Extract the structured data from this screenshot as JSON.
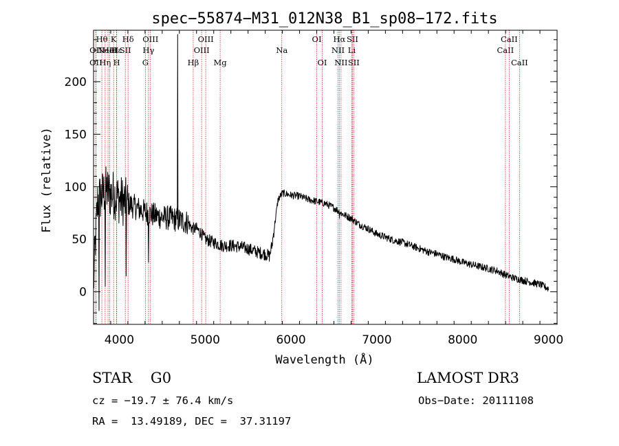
{
  "chart_data": {
    "type": "line",
    "title": "spec−55874−M31_012N38_B1_sp08−172.fits",
    "xlabel": "Wavelength (Å)",
    "ylabel": "Flux (relative)",
    "xlim": [
      3700,
      9100
    ],
    "ylim": [
      -31,
      249
    ],
    "xticks": [
      {
        "value": 4000,
        "label": "4000"
      },
      {
        "value": 5000,
        "label": "5000"
      },
      {
        "value": 6000,
        "label": "6000"
      },
      {
        "value": 7000,
        "label": "7000"
      },
      {
        "value": 8000,
        "label": "8000"
      },
      {
        "value": 9000,
        "label": "9000"
      }
    ],
    "yticks": [
      {
        "value": 0,
        "label": "0"
      },
      {
        "value": 50,
        "label": "50"
      },
      {
        "value": 100,
        "label": "100"
      },
      {
        "value": 150,
        "label": "150"
      },
      {
        "value": 200,
        "label": "200"
      }
    ],
    "x_minor_step": 200,
    "y_minor_step": 10,
    "grid": false,
    "spectrum_anchors": [
      [
        3700,
        5
      ],
      [
        3720,
        45
      ],
      [
        3750,
        88
      ],
      [
        3800,
        92
      ],
      [
        3850,
        97
      ],
      [
        3900,
        93
      ],
      [
        3950,
        92
      ],
      [
        4000,
        88
      ],
      [
        4050,
        86
      ],
      [
        4100,
        84
      ],
      [
        4150,
        82
      ],
      [
        4200,
        80
      ],
      [
        4300,
        76
      ],
      [
        4400,
        73
      ],
      [
        4500,
        71
      ],
      [
        4600,
        70
      ],
      [
        4700,
        68
      ],
      [
        4800,
        66
      ],
      [
        4850,
        60
      ],
      [
        4900,
        60
      ],
      [
        4950,
        56
      ],
      [
        5000,
        50
      ],
      [
        5100,
        47
      ],
      [
        5200,
        44
      ],
      [
        5300,
        44
      ],
      [
        5400,
        43
      ],
      [
        5500,
        41
      ],
      [
        5600,
        38
      ],
      [
        5700,
        36
      ],
      [
        5750,
        34
      ],
      [
        5780,
        45
      ],
      [
        5820,
        70
      ],
      [
        5850,
        88
      ],
      [
        5900,
        94
      ],
      [
        6000,
        92
      ],
      [
        6100,
        91
      ],
      [
        6200,
        88
      ],
      [
        6300,
        86
      ],
      [
        6400,
        84
      ],
      [
        6500,
        80
      ],
      [
        6600,
        74
      ],
      [
        6700,
        70
      ],
      [
        6800,
        64
      ],
      [
        6900,
        60
      ],
      [
        7000,
        55
      ],
      [
        7100,
        52
      ],
      [
        7200,
        49
      ],
      [
        7300,
        47
      ],
      [
        7400,
        44
      ],
      [
        7500,
        41
      ],
      [
        7600,
        38
      ],
      [
        7700,
        36
      ],
      [
        7800,
        33
      ],
      [
        7900,
        31
      ],
      [
        8000,
        28
      ],
      [
        8100,
        26
      ],
      [
        8200,
        24
      ],
      [
        8300,
        22
      ],
      [
        8400,
        20
      ],
      [
        8500,
        16
      ],
      [
        8600,
        13
      ],
      [
        8700,
        11
      ],
      [
        8800,
        9
      ],
      [
        8900,
        7
      ],
      [
        9000,
        3
      ]
    ],
    "noise_regions": [
      {
        "from": 3700,
        "to": 4100,
        "amplitude": 24
      },
      {
        "from": 4100,
        "to": 4800,
        "amplitude": 12
      },
      {
        "from": 4800,
        "to": 5800,
        "amplitude": 6
      },
      {
        "from": 5800,
        "to": 9000,
        "amplitude": 3.5
      }
    ],
    "spikes": [
      {
        "x": 4680,
        "y": 245
      },
      {
        "x": 3765,
        "y": -18
      },
      {
        "x": 3835,
        "y": 5
      },
      {
        "x": 3930,
        "y": 10
      },
      {
        "x": 4080,
        "y": 15
      },
      {
        "x": 4340,
        "y": 28
      },
      {
        "x": 6565,
        "y": 70
      }
    ],
    "line_markers": [
      {
        "x": 3797,
        "label": "Hθ",
        "row": 1
      },
      {
        "x": 3727,
        "label": "OII",
        "row": 2
      },
      {
        "x": 3727,
        "label": "OII",
        "row": 3
      },
      {
        "x": 3835,
        "label": "Hη",
        "row": 3
      },
      {
        "x": 3869,
        "label": "NeIII",
        "row": 2
      },
      {
        "x": 3889,
        "label": "HeI",
        "row": 2
      },
      {
        "x": 3934,
        "label": "K",
        "row": 1
      },
      {
        "x": 3970,
        "label": "H",
        "row": 3
      },
      {
        "x": 3968,
        "label": "Hε",
        "row": 2
      },
      {
        "x": 4070,
        "label": "SII",
        "row": 2
      },
      {
        "x": 4102,
        "label": "Hδ",
        "row": 1
      },
      {
        "x": 4304,
        "label": "G",
        "row": 3
      },
      {
        "x": 4340,
        "label": "Hγ",
        "row": 2
      },
      {
        "x": 4363,
        "label": "OIII",
        "row": 1
      },
      {
        "x": 4861,
        "label": "Hβ",
        "row": 3
      },
      {
        "x": 4959,
        "label": "OIII",
        "row": 2
      },
      {
        "x": 5007,
        "label": "OIII",
        "row": 1
      },
      {
        "x": 5175,
        "label": "Mg",
        "row": 3
      },
      {
        "x": 5893,
        "label": "Na",
        "row": 2
      },
      {
        "x": 6300,
        "label": "OI",
        "row": 1
      },
      {
        "x": 6364,
        "label": "OI",
        "row": 3
      },
      {
        "x": 6548,
        "label": "NII",
        "row": 2
      },
      {
        "x": 6563,
        "label": "Hα",
        "row": 1
      },
      {
        "x": 6583,
        "label": "NII",
        "row": 3
      },
      {
        "x": 6708,
        "label": "Li",
        "row": 2
      },
      {
        "x": 6716,
        "label": "SII",
        "row": 1
      },
      {
        "x": 6731,
        "label": "SII",
        "row": 3
      },
      {
        "x": 8498,
        "label": "CaII",
        "row": 2
      },
      {
        "x": 8542,
        "label": "CaII",
        "row": 1
      },
      {
        "x": 8662,
        "label": "CaII",
        "row": 3
      }
    ]
  },
  "info": {
    "class_label": "STAR    G0",
    "survey": "LAMOST DR3",
    "cz": "cz = −19.7 ± 76.4 km/s",
    "obs_date": "Obs−Date: 20111108",
    "coords": "RA =  13.49189, DEC =  37.31197"
  },
  "colors": {
    "spectrum": "#000000",
    "marker": "#cc0000",
    "axes": "#000000",
    "background": "#ffffff"
  }
}
